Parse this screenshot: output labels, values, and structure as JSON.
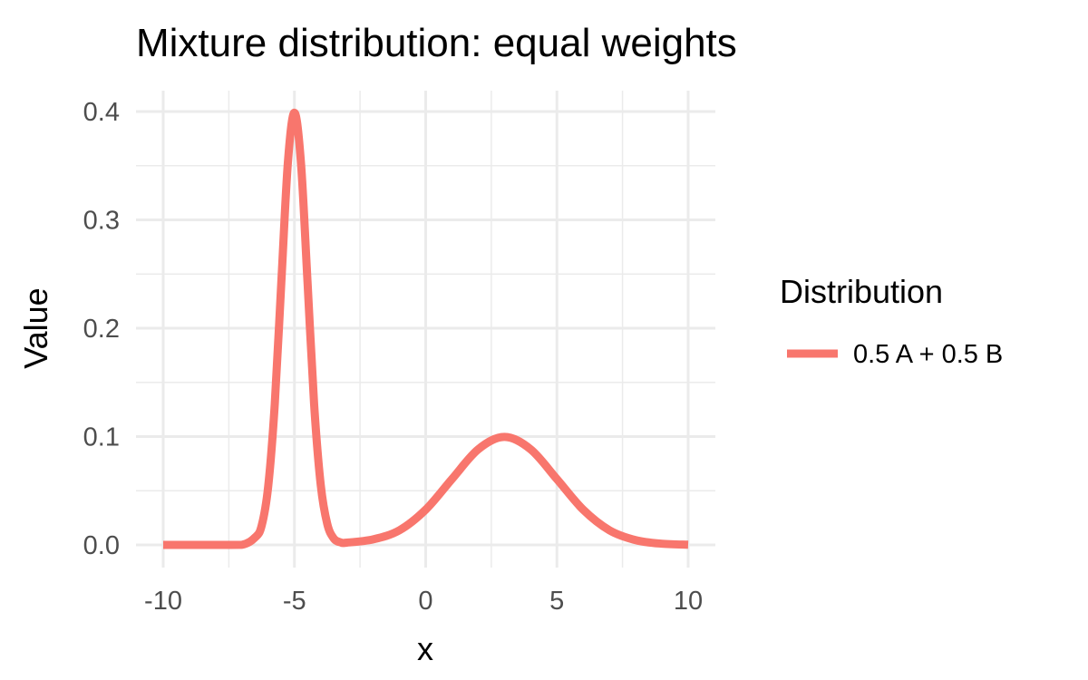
{
  "chart_data": {
    "type": "line",
    "title": "Mixture distribution: equal weights",
    "xlabel": "x",
    "ylabel": "Value",
    "xlim": [
      -10,
      10
    ],
    "ylim": [
      0,
      0.4
    ],
    "x_ticks": [
      -10,
      -5,
      0,
      5,
      10
    ],
    "x_tick_labels": [
      "-10",
      "-5",
      "0",
      "5",
      "10"
    ],
    "y_ticks": [
      0,
      0.1,
      0.2,
      0.3,
      0.4
    ],
    "y_tick_labels": [
      "0.0",
      "0.1",
      "0.2",
      "0.3",
      "0.4"
    ],
    "grid": true,
    "legend": {
      "title": "Distribution",
      "position": "right"
    },
    "series": [
      {
        "name": "0.5 A + 0.5 B",
        "color": "#F8766D",
        "x": [
          -10,
          -9,
          -8,
          -7,
          -6.5,
          -6.25,
          -6,
          -5.75,
          -5.5,
          -5.25,
          -5,
          -4.75,
          -4.5,
          -4.25,
          -4,
          -3.75,
          -3.5,
          -3.25,
          -3,
          -2,
          -1,
          0,
          1,
          2,
          3,
          4,
          5,
          6,
          7,
          8,
          9,
          10
        ],
        "y": [
          0,
          0,
          0,
          0.0001,
          0.0069,
          0.0177,
          0.054,
          0.1298,
          0.2422,
          0.3528,
          0.3989,
          0.3521,
          0.2419,
          0.1298,
          0.0557,
          0.0194,
          0.0059,
          0.0024,
          0.0021,
          0.0051,
          0.0135,
          0.0325,
          0.0607,
          0.0882,
          0.0997,
          0.0882,
          0.0607,
          0.0325,
          0.0135,
          0.0044,
          0.0011,
          0.0002
        ]
      }
    ]
  }
}
